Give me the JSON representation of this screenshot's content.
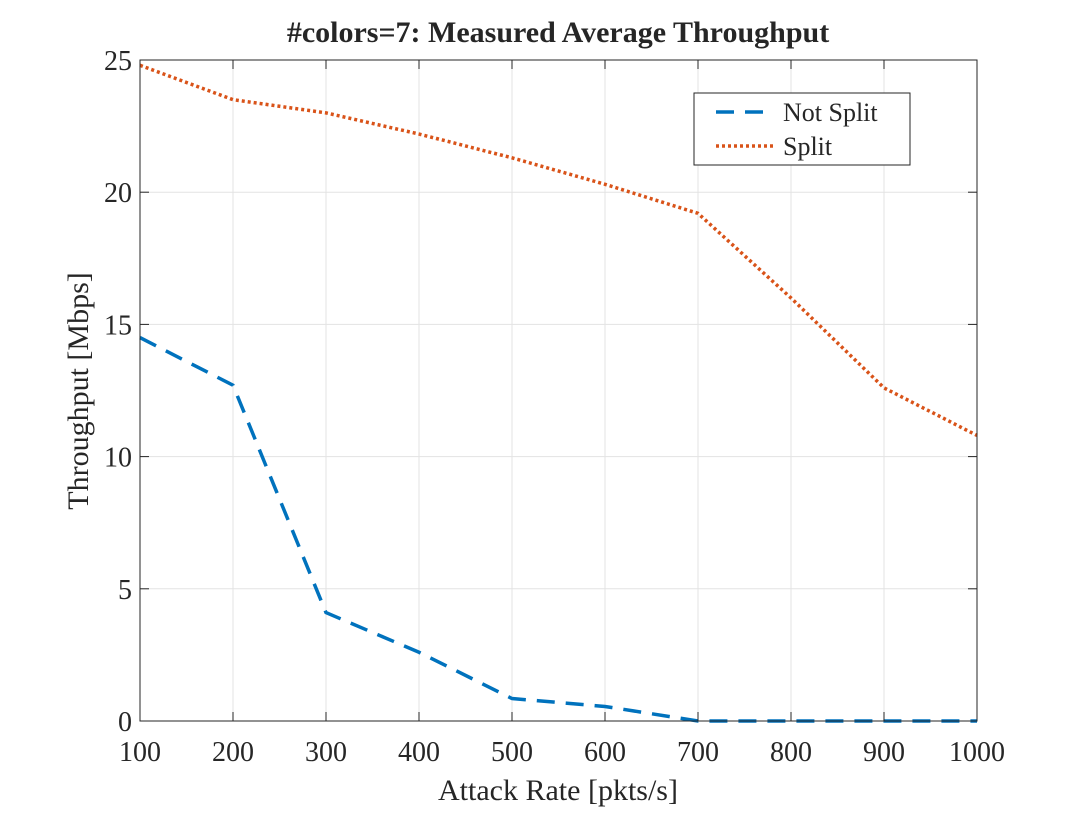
{
  "chart_data": {
    "type": "line",
    "title": "#colors=7: Measured Average Throughput",
    "xlabel": "Attack Rate [pkts/s]",
    "ylabel": "Throughput [Mbps]",
    "xlim": [
      100,
      1000
    ],
    "ylim": [
      0,
      25
    ],
    "xticks": [
      100,
      200,
      300,
      400,
      500,
      600,
      700,
      800,
      900,
      1000
    ],
    "yticks": [
      0,
      5,
      10,
      15,
      20,
      25
    ],
    "grid": true,
    "legend_position": "top-right",
    "x": [
      100,
      200,
      300,
      400,
      500,
      600,
      700,
      800,
      900,
      1000
    ],
    "series": [
      {
        "name": "Not Split",
        "color": "#0072BD",
        "style": "dashed",
        "values": [
          14.5,
          12.7,
          4.1,
          2.6,
          0.85,
          0.55,
          0.0,
          0.0,
          0.0,
          0.0
        ]
      },
      {
        "name": "Split",
        "color": "#D95319",
        "style": "dotted",
        "values": [
          24.8,
          23.5,
          23.0,
          22.2,
          21.3,
          20.3,
          19.2,
          16.0,
          12.6,
          10.8
        ]
      }
    ]
  }
}
